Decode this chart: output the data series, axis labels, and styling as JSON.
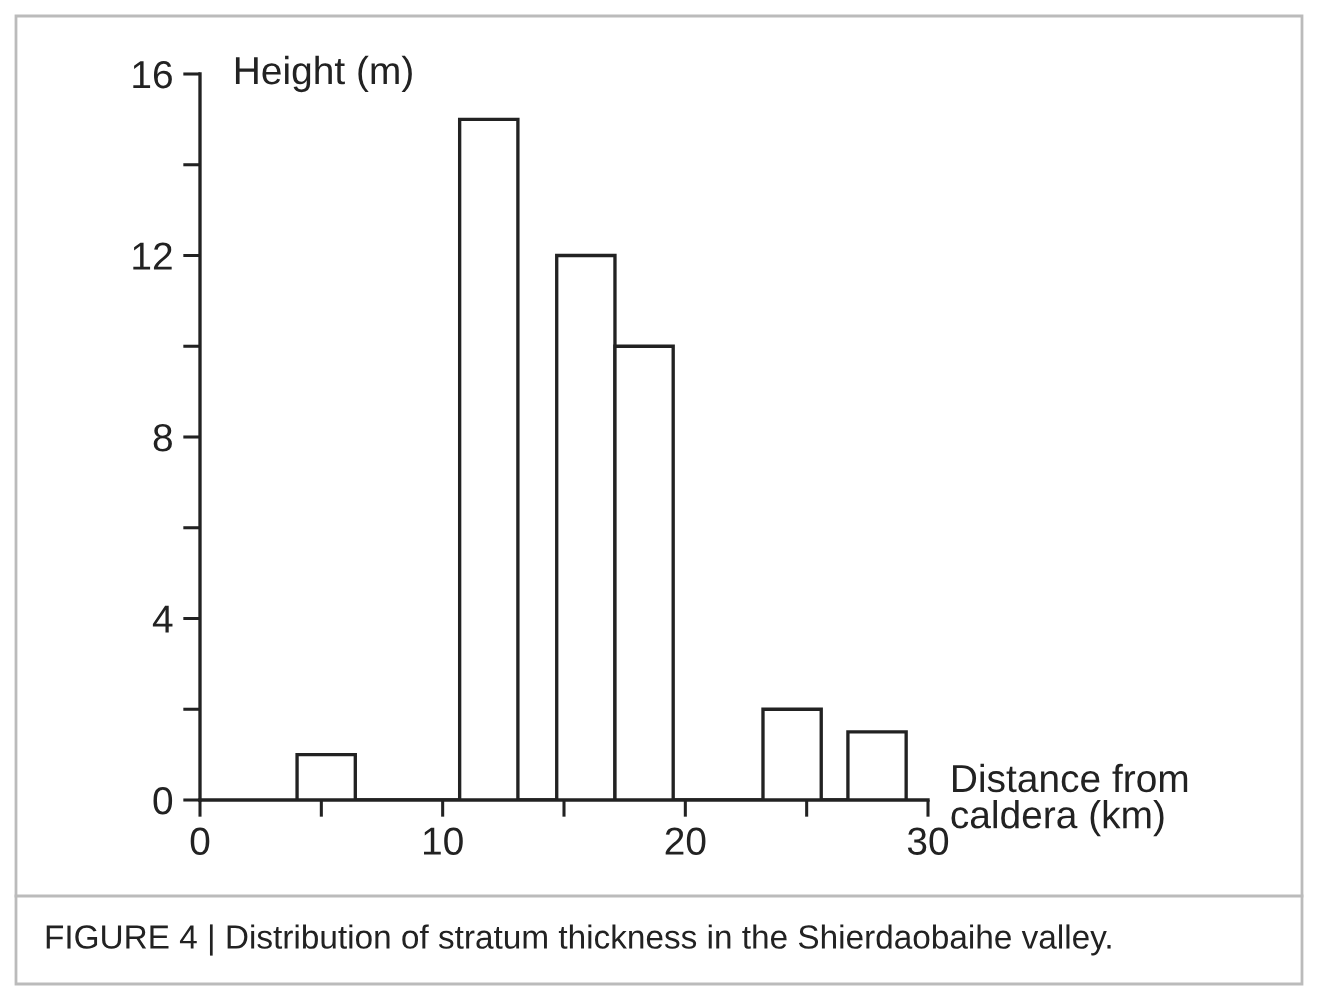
{
  "chart_data": {
    "type": "histogram",
    "bins": [
      4,
      6.4,
      10.7,
      13.1,
      14.7,
      17.1,
      19.5,
      23.2,
      25.6,
      26.7,
      29.1
    ],
    "values": [
      1,
      0,
      15,
      0,
      12,
      10,
      0,
      2,
      0,
      1.5
    ],
    "color": "#ffffff",
    "xlabel": "Distance from\ncaldera (km)",
    "ylabel": "Height (m)",
    "xlim": [
      0,
      30
    ],
    "xticks": [
      0,
      {
        "value": 5,
        "label": null
      },
      10,
      {
        "value": 15,
        "label": null
      },
      20,
      {
        "value": 25,
        "label": null
      },
      30
    ],
    "ylim": [
      0,
      16
    ],
    "yticks": [
      0,
      {
        "value": 2,
        "label": null
      },
      4,
      {
        "value": 6,
        "label": null
      },
      8,
      {
        "value": 10,
        "label": null
      },
      12,
      {
        "value": 14,
        "label": null
      },
      16
    ],
    "grid": false,
    "annotations": [
      "FIGURE 4 | Distribution of stratum thickness in the Shierdaobaihe valley."
    ]
  }
}
